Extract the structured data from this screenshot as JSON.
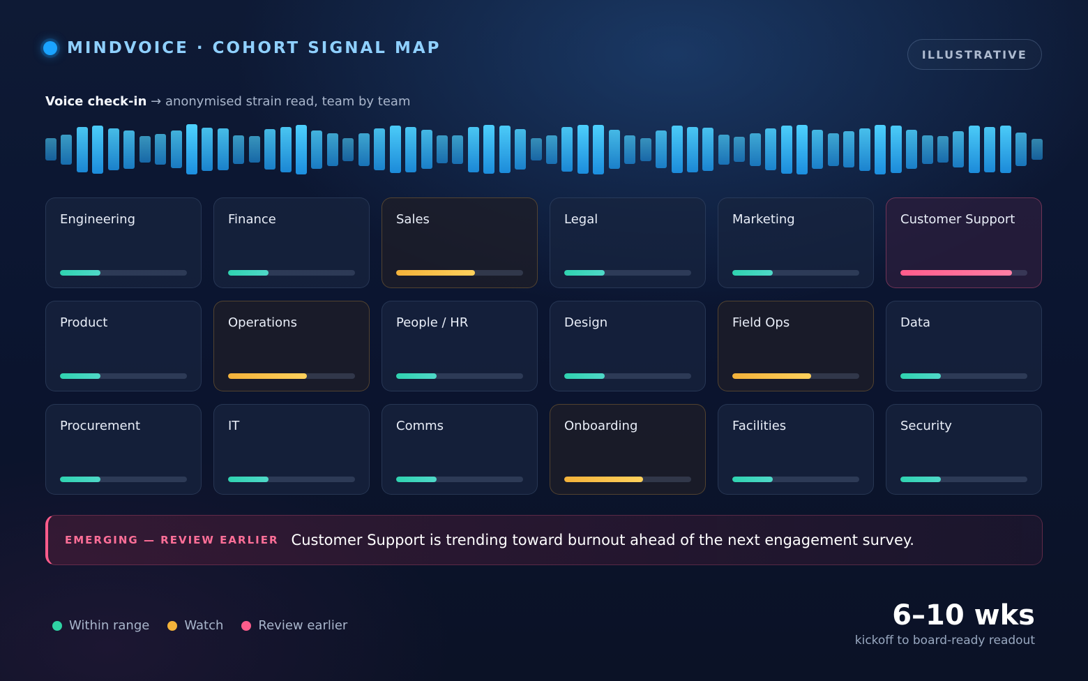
{
  "header": {
    "title": "MINDVOICE · COHORT SIGNAL MAP",
    "badge": "ILLUSTRATIVE",
    "subtitle_bold": "Voice check-in",
    "subtitle_rest": " → anonymised strain read, team by team"
  },
  "waveform": {
    "levels": [
      0.28,
      0.48,
      0.88,
      0.95,
      0.78,
      0.7,
      0.4,
      0.5,
      0.68,
      1.0,
      0.82,
      0.78,
      0.45,
      0.4,
      0.75,
      0.88,
      0.98,
      0.7,
      0.55,
      0.3,
      0.55,
      0.78,
      0.92,
      0.88,
      0.72,
      0.42,
      0.45,
      0.88,
      0.96,
      0.92,
      0.75,
      0.28,
      0.45,
      0.86,
      0.96,
      0.98,
      0.72,
      0.45,
      0.3,
      0.68,
      0.92,
      0.88,
      0.82,
      0.48,
      0.35,
      0.55,
      0.78,
      0.95,
      0.98,
      0.72,
      0.55,
      0.65,
      0.8,
      0.98,
      0.92,
      0.72,
      0.45,
      0.4,
      0.65,
      0.92,
      0.88,
      0.92,
      0.58,
      0.25
    ],
    "color": "#3ec5ff"
  },
  "teams": [
    {
      "name": "Engineering",
      "level": 0.32,
      "status": "ok"
    },
    {
      "name": "Finance",
      "level": 0.32,
      "status": "ok"
    },
    {
      "name": "Sales",
      "level": 0.62,
      "status": "watch"
    },
    {
      "name": "Legal",
      "level": 0.32,
      "status": "ok"
    },
    {
      "name": "Marketing",
      "level": 0.32,
      "status": "ok"
    },
    {
      "name": "Customer Support",
      "level": 0.88,
      "status": "alert"
    },
    {
      "name": "Product",
      "level": 0.32,
      "status": "ok"
    },
    {
      "name": "Operations",
      "level": 0.62,
      "status": "watch"
    },
    {
      "name": "People / HR",
      "level": 0.32,
      "status": "ok"
    },
    {
      "name": "Design",
      "level": 0.32,
      "status": "ok"
    },
    {
      "name": "Field Ops",
      "level": 0.62,
      "status": "watch"
    },
    {
      "name": "Data",
      "level": 0.32,
      "status": "ok"
    },
    {
      "name": "Procurement",
      "level": 0.32,
      "status": "ok"
    },
    {
      "name": "IT",
      "level": 0.32,
      "status": "ok"
    },
    {
      "name": "Comms",
      "level": 0.32,
      "status": "ok"
    },
    {
      "name": "Onboarding",
      "level": 0.62,
      "status": "watch"
    },
    {
      "name": "Facilities",
      "level": 0.32,
      "status": "ok"
    },
    {
      "name": "Security",
      "level": 0.32,
      "status": "ok"
    }
  ],
  "alert": {
    "tag": "EMERGING — REVIEW EARLIER",
    "message": "Customer Support is trending toward burnout ahead of the next engagement survey."
  },
  "legend": [
    {
      "label": "Within range",
      "color": "#2fd3a4"
    },
    {
      "label": "Watch",
      "color": "#f3b23a"
    },
    {
      "label": "Review earlier",
      "color": "#ff5c8c"
    }
  ],
  "stat": {
    "value": "6–10 wks",
    "label": "kickoff to board-ready readout"
  },
  "colors": {
    "accent": "#1aa3ff",
    "ok": "#2fd3b0",
    "watch": "#f3b23a",
    "alert": "#ff5c8c"
  }
}
